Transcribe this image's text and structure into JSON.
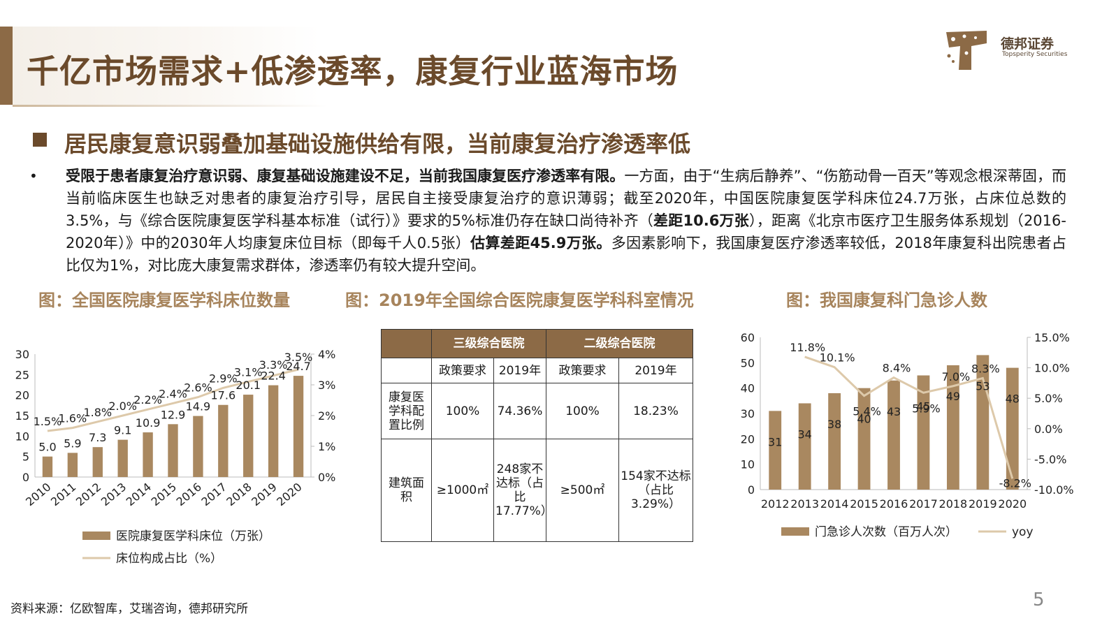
{
  "header": {
    "title": "千亿市场需求+低渗透率，康复行业蓝海市场",
    "logo": {
      "name": "德邦证券",
      "tagline": "Topsperity Securities"
    }
  },
  "subheading": "居民康复意识弱叠加基础设施供给有限，当前康复治疗渗透率低",
  "paragraph": {
    "bold_1": "受限于患者康复治疗意识弱、康复基础设施建设不足，当前我国康复医疗渗透率有限。",
    "text_1": "一方面，由于“生病后静养”、“伤筋动骨一百天”等观念根深蒂固，而当前临床医生也缺乏对患者的康复治疗引导，居民自主接受康复治疗的意识薄弱；截至2020年，中国医院康复医学科床位24.7万张，占床位总数的3.5%，与《综合医院康复医学科基本标准（试行）》要求的5%标准仍存在缺口尚待补齐（",
    "bold_2": "差距10.6万张",
    "text_2": "），距离《北京市医疗卫生服务体系规划（2016-2020年）》中的2030年人均康复床位目标（即每千人0.5张）",
    "bold_3": "估算差距45.9万张。",
    "text_3": "多因素影响下，我国康复医疗渗透率较低，2018年康复科出院患者占比仅为1%，对比庞大康复需求群体，渗透率仍有较大提升空间。"
  },
  "figures": {
    "fig1_title": "图：全国医院康复医学科床位数量",
    "fig2_title": "图：2019年全国综合医院康复医学科科室情况",
    "fig3_title": "图：我国康复科门急诊人数"
  },
  "table": {
    "group_headers": [
      "三级综合医院",
      "二级综合医院"
    ],
    "sub_headers": [
      "政策要求",
      "2019年",
      "政策要求",
      "2019年"
    ],
    "rows": [
      {
        "label": "康复医学科配置比例",
        "cells": [
          "100%",
          "74.36%",
          "100%",
          "18.23%"
        ]
      },
      {
        "label": "建筑面积",
        "cells": [
          "≥1000㎡",
          "248家不达标（占比17.77%）",
          "≥500㎡",
          "154家不达标（占比3.29%）"
        ]
      }
    ]
  },
  "chart_data": [
    {
      "type": "bar",
      "categories": [
        "2010",
        "2011",
        "2012",
        "2013",
        "2014",
        "2015",
        "2016",
        "2017",
        "2018",
        "2019",
        "2020"
      ],
      "series": [
        {
          "name": "医院康复医学科床位（万张）",
          "type": "bar",
          "axis": "left",
          "color": "#a98860",
          "values": [
            5.0,
            5.9,
            7.3,
            9.1,
            10.9,
            12.9,
            14.9,
            17.6,
            20.1,
            22.4,
            24.7
          ],
          "labels": [
            "5.0",
            "5.9",
            "7.3",
            "9.1",
            "10.9",
            "12.9",
            "14.9",
            "17.6",
            "20.1",
            "22.4",
            "24.7"
          ]
        },
        {
          "name": "床位构成占比（%）",
          "type": "line",
          "axis": "right",
          "color": "#ddc9aa",
          "values": [
            1.5,
            1.6,
            1.8,
            2.0,
            2.2,
            2.4,
            2.6,
            2.9,
            3.1,
            3.3,
            3.5
          ],
          "labels": [
            "1.5%",
            "1.6%",
            "1.8%",
            "2.0%",
            "2.2%",
            "2.4%",
            "2.6%",
            "2.9%",
            "3.1%",
            "3.3%",
            "3.5%"
          ]
        }
      ],
      "ylim": [
        0,
        30
      ],
      "yticks": [
        "0",
        "5",
        "10",
        "15",
        "20",
        "25",
        "30"
      ],
      "y2lim": [
        0,
        4
      ],
      "y2ticks": [
        "0%",
        "1%",
        "2%",
        "3%",
        "4%"
      ],
      "legend_position": "bottom"
    },
    {
      "type": "bar",
      "categories": [
        "2012",
        "2013",
        "2014",
        "2015",
        "2016",
        "2017",
        "2018",
        "2019",
        "2020"
      ],
      "series": [
        {
          "name": "门急诊人次数（百万人次）",
          "type": "bar",
          "axis": "left",
          "color": "#a98860",
          "values": [
            31,
            34,
            38,
            40,
            43,
            45,
            49,
            53,
            48
          ],
          "labels": [
            "31",
            "34",
            "38",
            "40",
            "43",
            "45",
            "49",
            "53",
            "48"
          ]
        },
        {
          "name": "yoy",
          "type": "line",
          "axis": "right",
          "color": "#ddc9aa",
          "values": [
            null,
            11.8,
            10.1,
            5.4,
            8.4,
            5.9,
            7.0,
            8.3,
            -8.2
          ],
          "labels": [
            "",
            "11.8%",
            "10.1%",
            "5.4%",
            "8.4%",
            "5.9%",
            "7.0%",
            "8.3%",
            "-8.2%"
          ]
        }
      ],
      "ylim": [
        0,
        60
      ],
      "yticks": [
        "0",
        "10",
        "20",
        "30",
        "40",
        "50",
        "60"
      ],
      "y2lim": [
        -10,
        15
      ],
      "y2ticks": [
        "-10.0%",
        "-5.0%",
        "0.0%",
        "5.0%",
        "10.0%",
        "15.0%"
      ],
      "legend_position": "bottom"
    }
  ],
  "footer": {
    "source": "资料来源：亿欧智库，艾瑞咨询，德邦研究所",
    "page_number": "5"
  },
  "colors": {
    "brand_dark": "#6b4a2b",
    "brand": "#8c6a46",
    "figure_title": "#a7845c",
    "bar": "#a98860",
    "line": "#ddc9aa"
  }
}
